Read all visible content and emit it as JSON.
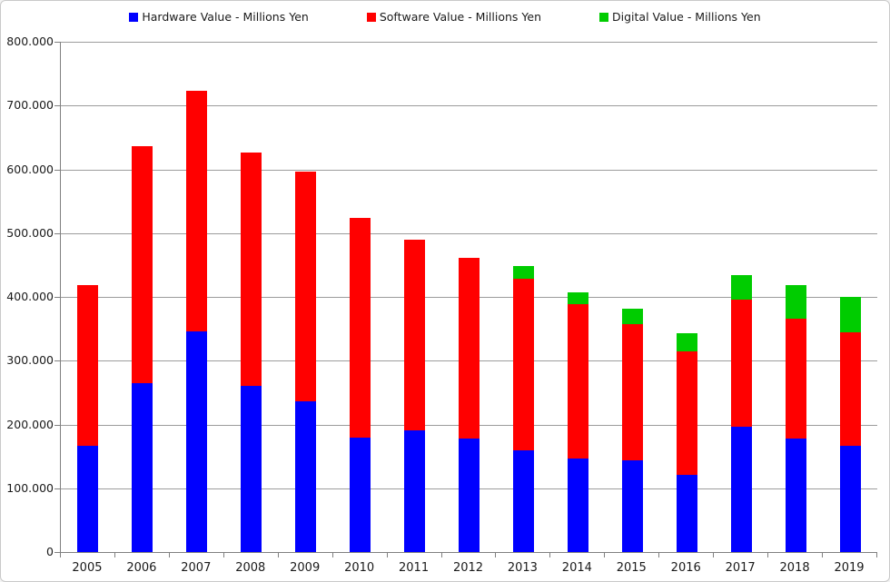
{
  "chart_data": {
    "type": "bar",
    "stacked": true,
    "title": "",
    "xlabel": "",
    "ylabel": "",
    "categories": [
      "2005",
      "2006",
      "2007",
      "2008",
      "2009",
      "2010",
      "2011",
      "2012",
      "2013",
      "2014",
      "2015",
      "2016",
      "2017",
      "2018",
      "2019"
    ],
    "series": [
      {
        "name": "Hardware Value - Millions Yen",
        "color": "#0000FF",
        "values": [
          167000,
          265000,
          346000,
          260000,
          236000,
          180000,
          191000,
          178000,
          160000,
          147000,
          144000,
          121000,
          196000,
          178000,
          167000
        ]
      },
      {
        "name": "Software Value - Millions Yen",
        "color": "#FF0000",
        "values": [
          251000,
          372000,
          377000,
          367000,
          361000,
          344000,
          299000,
          283000,
          269000,
          241000,
          214000,
          194000,
          200000,
          188000,
          178000
        ]
      },
      {
        "name": "Digital Value - Millions Yen",
        "color": "#00CC00",
        "values": [
          0,
          0,
          0,
          0,
          0,
          0,
          0,
          0,
          20000,
          19000,
          24000,
          28000,
          38000,
          53000,
          55000
        ]
      }
    ],
    "totals": [
      418000,
      637000,
      723000,
      627000,
      597000,
      524000,
      490000,
      461000,
      449000,
      407000,
      382000,
      343000,
      434000,
      419000,
      400000
    ],
    "ylim": [
      0,
      800000
    ],
    "ytick_step": 100000,
    "ytick_labels": [
      "0",
      "100.000",
      "200.000",
      "300.000",
      "400.000",
      "500.000",
      "600.000",
      "700.000",
      "800.000"
    ],
    "grid": true,
    "legend_position": "top",
    "colors": {
      "gridline": "#9C9C9C",
      "axis": "#808080",
      "label": "#1a1a1a",
      "background": "#FFFFFF",
      "border": "#C9C9C9"
    }
  }
}
